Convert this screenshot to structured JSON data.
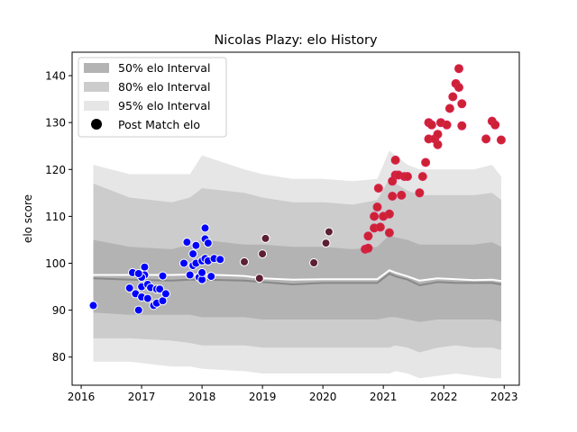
{
  "chart_data": {
    "type": "scatter",
    "title": "Nicolas Plazy: elo History",
    "xlabel": "",
    "ylabel": "elo score",
    "xlim": [
      2015.85,
      2023.25
    ],
    "ylim": [
      74,
      145
    ],
    "xticks": [
      2016,
      2017,
      2018,
      2019,
      2020,
      2021,
      2022,
      2023
    ],
    "yticks": [
      80,
      90,
      100,
      110,
      120,
      130,
      140
    ],
    "grid": false,
    "legend_position": "top-left",
    "legend": {
      "band50": "50% elo Interval",
      "band80": "80% elo Interval",
      "band95": "95% elo Interval",
      "points": "Post Match elo"
    },
    "colors": {
      "band50": "#b3b3b3",
      "band80": "#cccccc",
      "band95": "#e6e6e6",
      "median_line": "#888888",
      "mean_line": "#ffffff",
      "points_blue": "#0000ff",
      "points_dark": "#5c1f33",
      "points_red": "#cc2233",
      "point_edge": "#ffffff",
      "point_edge_red": "#dd2255"
    },
    "bands": {
      "x": [
        2016.2,
        2016.8,
        2017.5,
        2017.8,
        2018.0,
        2018.7,
        2019.0,
        2019.5,
        2020.0,
        2020.5,
        2020.9,
        2021.1,
        2021.2,
        2021.4,
        2021.6,
        2021.9,
        2022.2,
        2022.5,
        2022.8,
        2022.95
      ],
      "p95_low": [
        79,
        79,
        78,
        78,
        77.5,
        77,
        76.5,
        76.5,
        76.5,
        76.5,
        76.5,
        76.5,
        77,
        76.5,
        75.5,
        76,
        76.5,
        76,
        75.5,
        75.5
      ],
      "p95_high": [
        121,
        119,
        119,
        119,
        123,
        120,
        119,
        118,
        118,
        117.5,
        118,
        124,
        123,
        121,
        120,
        120,
        120,
        120,
        121,
        118.5
      ],
      "p80_low": [
        84,
        84,
        83.5,
        83,
        82.5,
        82.5,
        82,
        82,
        82,
        82,
        82,
        82,
        82.5,
        82,
        81,
        82,
        82.5,
        82,
        82,
        81.5
      ],
      "p80_high": [
        117,
        114,
        113,
        114,
        116,
        115,
        114,
        113,
        113,
        112.5,
        113.5,
        118,
        117,
        115.5,
        114.5,
        114.5,
        114.5,
        114.5,
        115,
        113.5
      ],
      "p50_low": [
        89.5,
        89,
        89,
        89,
        88.5,
        88.5,
        88,
        88,
        88,
        88,
        88,
        88.5,
        88.5,
        88,
        87.5,
        88,
        88,
        88,
        88,
        87.5
      ],
      "p50_high": [
        105,
        103.5,
        103,
        104,
        105,
        104,
        104,
        103.5,
        103.5,
        103,
        103.5,
        106,
        105.5,
        105,
        104,
        104,
        104,
        104,
        104.5,
        103.5
      ],
      "median": [
        96.8,
        96.5,
        96.3,
        96.5,
        96.5,
        96.3,
        96.0,
        95.5,
        95.8,
        95.8,
        95.8,
        97.8,
        97.2,
        96.5,
        95.3,
        96.0,
        95.8,
        95.8,
        95.8,
        95.5
      ],
      "mean": [
        97.5,
        97.5,
        97.5,
        97.6,
        97.6,
        97.3,
        96.8,
        96.5,
        96.6,
        96.6,
        96.6,
        98.5,
        98.0,
        97.2,
        96.3,
        96.8,
        96.6,
        96.4,
        96.5,
        96.2
      ]
    },
    "series": [
      {
        "group": "blue",
        "x": [
          2016.2,
          2016.8,
          2016.85,
          2016.9,
          2016.95,
          2017.0,
          2017.0,
          2017.05,
          2017.05,
          2017.1,
          2017.1,
          2017.15,
          2017.2,
          2017.25,
          2017.25,
          2017.3,
          2017.35,
          2017.35,
          2017.4,
          2017.0,
          2016.95,
          2017.7,
          2017.75,
          2017.8,
          2017.85,
          2017.85,
          2017.9,
          2017.9,
          2017.95,
          2018.0,
          2018.0,
          2018.0,
          2018.05,
          2018.05,
          2018.05,
          2018.1,
          2018.1,
          2018.15,
          2018.2,
          2018.3
        ],
        "y": [
          91,
          94.7,
          98,
          93.5,
          90,
          92.8,
          95,
          99.2,
          97.5,
          95.5,
          92.5,
          94.8,
          91,
          94.5,
          91.5,
          94.5,
          92,
          97.3,
          93.5,
          97,
          97.8,
          100,
          104.5,
          97.5,
          102,
          99.5,
          103.8,
          100,
          97,
          96.5,
          98,
          100.5,
          107.5,
          105.2,
          101,
          104.3,
          100.5,
          97.2,
          101,
          100.8
        ]
      },
      {
        "group": "dark",
        "x": [
          2018.7,
          2018.95,
          2019.0,
          2019.05,
          2019.85,
          2020.05,
          2020.1
        ],
        "y": [
          100.3,
          96.8,
          102,
          105.3,
          100.1,
          104.3,
          106.7
        ]
      },
      {
        "group": "red",
        "x": [
          2020.7,
          2020.75,
          2020.75,
          2020.85,
          2020.85,
          2020.9,
          2020.92,
          2020.95,
          2021.0,
          2021.1,
          2021.1,
          2021.15,
          2021.15,
          2021.2,
          2021.2,
          2021.25,
          2021.3,
          2021.35,
          2021.4,
          2021.6,
          2021.65,
          2021.7,
          2021.75,
          2021.75,
          2021.8,
          2021.85,
          2021.9,
          2021.9,
          2021.95,
          2022.05,
          2022.1,
          2022.15,
          2022.2,
          2022.25,
          2022.25,
          2022.3,
          2022.3,
          2022.7,
          2022.8,
          2022.85,
          2022.95
        ],
        "y": [
          103,
          105.8,
          103.2,
          110,
          107.5,
          112,
          116,
          107.7,
          110,
          106.5,
          110.5,
          114.3,
          117.5,
          118.8,
          122,
          118.8,
          114.5,
          118.5,
          118.5,
          115,
          118.5,
          121.5,
          126.5,
          130,
          129.5,
          126.5,
          125.3,
          127.5,
          130,
          129.5,
          133,
          135.5,
          138.3,
          141.5,
          137.5,
          134,
          129.3,
          126.5,
          130.3,
          129.5,
          126.3
        ]
      }
    ]
  }
}
